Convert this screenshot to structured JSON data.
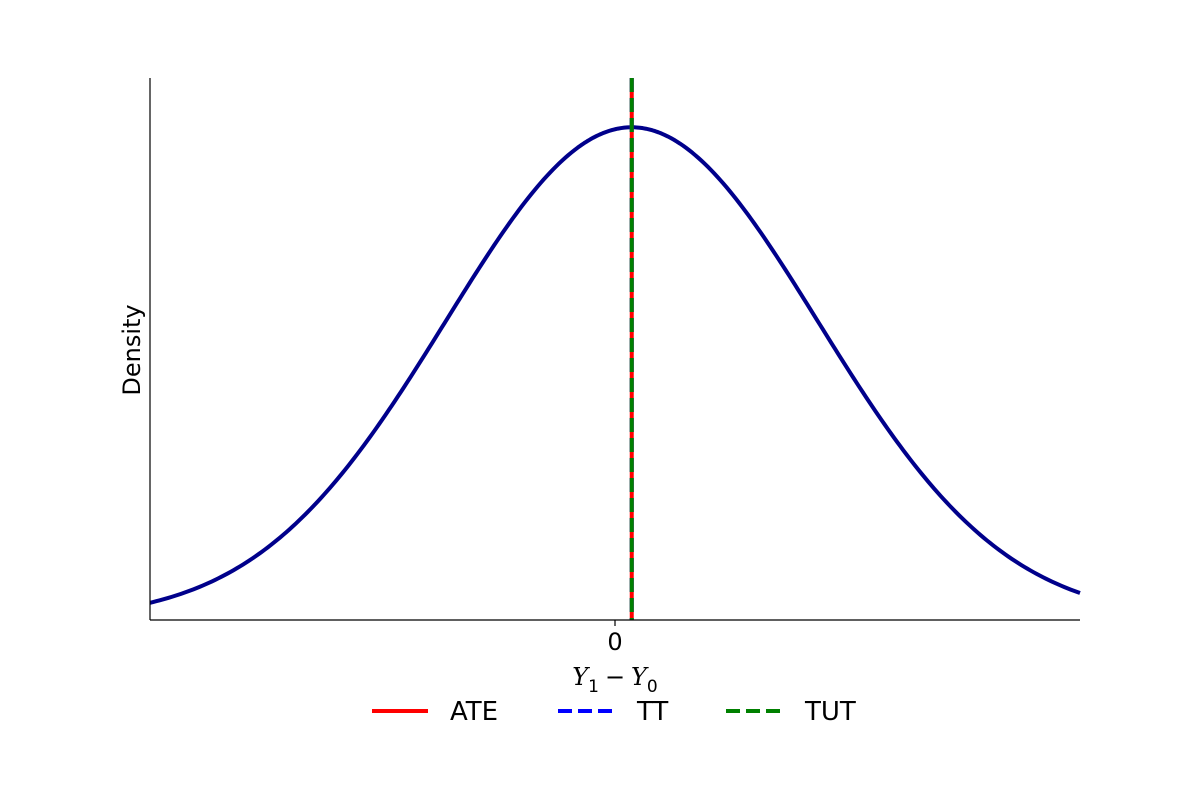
{
  "chart_data": {
    "type": "line",
    "title": "",
    "xlabel": {
      "base1": "Y",
      "sub1": "1",
      "op": "−",
      "base2": "Y",
      "sub2": "0"
    },
    "ylabel": "Density",
    "xlim": [
      -2.5,
      2.5
    ],
    "ylim": [
      0,
      1.1
    ],
    "xticks": [
      0
    ],
    "xtick_labels": [
      "0"
    ],
    "yticks": [],
    "grid": false,
    "spines": [
      "left",
      "bottom"
    ],
    "series": [
      {
        "kind": "density",
        "distribution": "normal",
        "mean": 0.09,
        "sd": 1.0,
        "peak_value": 1.0,
        "color": "#00008b",
        "line_style": "solid"
      }
    ],
    "vlines": [
      {
        "name": "ATE",
        "x": 0.09,
        "color": "#ff0000",
        "line_style": "solid"
      },
      {
        "name": "TT",
        "x": 0.09,
        "color": "#0000ff",
        "line_style": "dashed"
      },
      {
        "name": "TUT",
        "x": 0.09,
        "color": "#008000",
        "line_style": "dashed"
      }
    ],
    "legend": {
      "placement": "bottom-center",
      "columns": 3,
      "entries": [
        "ATE",
        "TT",
        "TUT"
      ]
    }
  }
}
